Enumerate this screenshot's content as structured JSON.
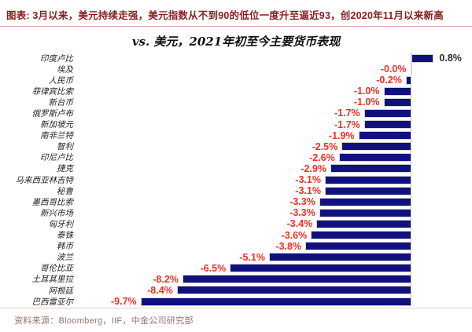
{
  "header": {
    "title": "图表: 3月以来，美元持续走强，美元指数从不到90的低位一度升至逼近93，创2020年11月以来新高"
  },
  "chart_data": {
    "type": "bar",
    "orientation": "horizontal",
    "title": "vs. 美元，2021年初至今主要货币表现",
    "categories": [
      "印度卢比",
      "埃及",
      "人民币",
      "菲律宾比索",
      "新台币",
      "俄罗斯卢布",
      "新加坡元",
      "南非兰特",
      "智利",
      "印尼卢比",
      "捷克",
      "马来西亚林吉特",
      "秘鲁",
      "墨西哥比索",
      "新兴市场",
      "匈牙利",
      "泰铢",
      "韩币",
      "波兰",
      "哥伦比亚",
      "土耳其里拉",
      "阿根廷",
      "巴西雷亚尔"
    ],
    "values": [
      0.8,
      -0.0,
      -0.2,
      -1.0,
      -1.0,
      -1.7,
      -1.7,
      -1.9,
      -2.5,
      -2.6,
      -2.9,
      -3.1,
      -3.1,
      -3.3,
      -3.3,
      -3.4,
      -3.6,
      -3.8,
      -5.1,
      -6.5,
      -8.2,
      -8.4,
      -9.7
    ],
    "value_labels": [
      "0.8%",
      "-0.0%",
      "-0.2%",
      "-1.0%",
      "-1.0%",
      "-1.7%",
      "-1.7%",
      "-1.9%",
      "-2.5%",
      "-2.6%",
      "-2.9%",
      "-3.1%",
      "-3.1%",
      "-3.3%",
      "-3.3%",
      "-3.4%",
      "-3.6%",
      "-3.8%",
      "-5.1%",
      "-6.5%",
      "-8.2%",
      "-8.4%",
      "-9.7%"
    ],
    "xlim": [
      -12,
      2.2
    ],
    "grid": false,
    "zero_line": true,
    "bar_color": "#10107e",
    "negative_label_color": "#ee2f23",
    "positive_label_color": "#2b2b2b",
    "legend": "none"
  },
  "footer": {
    "source": "资料来源：Bloomberg，IIF，中金公司研究部"
  }
}
